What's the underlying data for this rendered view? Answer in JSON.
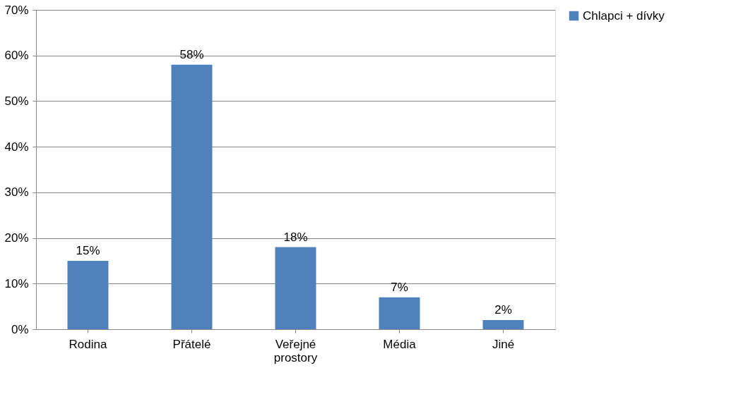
{
  "chart_data": {
    "type": "bar",
    "categories": [
      "Rodina",
      "Přátelé",
      "Veřejné prostory",
      "Média",
      "Jiné"
    ],
    "series": [
      {
        "name": "Chlapci + dívky",
        "color": "#4f81bd",
        "values": [
          15,
          58,
          18,
          7,
          2
        ],
        "value_labels": [
          "15%",
          "58%",
          "18%",
          "7%",
          "2%"
        ]
      }
    ],
    "ylim": [
      0,
      70
    ],
    "yticks": [
      {
        "value": 0,
        "label": "0%"
      },
      {
        "value": 10,
        "label": "10%"
      },
      {
        "value": 20,
        "label": "20%"
      },
      {
        "value": 30,
        "label": "30%"
      },
      {
        "value": 40,
        "label": "40%"
      },
      {
        "value": 50,
        "label": "50%"
      },
      {
        "value": 60,
        "label": "60%"
      },
      {
        "value": 70,
        "label": "70%"
      }
    ],
    "grid": "y",
    "legend": "right"
  }
}
